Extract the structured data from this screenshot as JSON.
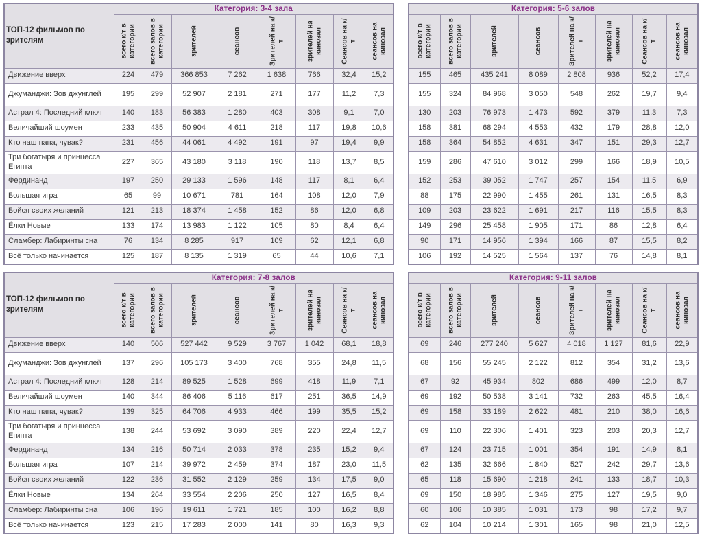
{
  "colors": {
    "category_title": "#8b3188",
    "header_bg": "#e2e0e5",
    "alt_row_bg": "#eceaef",
    "border": "#9b94ad",
    "outer_border": "#8d86a2"
  },
  "rows_header": "ТОП-12 фильмов по зрителям",
  "columns": [
    "всего к/т в категории",
    "всего залов в категории",
    "зрителей",
    "сеансов",
    "Зрителей на к/т",
    "зрителей на кинозал",
    "Сеансов на к/т",
    "сеансов на кинозал"
  ],
  "films": [
    "Движение вверх",
    "Джуманджи: Зов джунглей",
    "Астрал 4: Последний ключ",
    "Величайший шоумен",
    "Кто наш папа, чувак?",
    "Три богатыря и принцесса Египта",
    "Фердинанд",
    "Большая игра",
    "Бойся своих желаний",
    "Ёлки Новые",
    "Сламбер: Лабиринты сна",
    "Всё только начинается"
  ],
  "tables": [
    {
      "category": "Категория: 3-4 зала",
      "has_label_column": true,
      "rows": [
        [
          "224",
          "479",
          "366 853",
          "7 262",
          "1 638",
          "766",
          "32,4",
          "15,2"
        ],
        [
          "195",
          "299",
          "52 907",
          "2 181",
          "271",
          "177",
          "11,2",
          "7,3"
        ],
        [
          "140",
          "183",
          "56 383",
          "1 280",
          "403",
          "308",
          "9,1",
          "7,0"
        ],
        [
          "233",
          "435",
          "50 904",
          "4 611",
          "218",
          "117",
          "19,8",
          "10,6"
        ],
        [
          "231",
          "456",
          "44 061",
          "4 492",
          "191",
          "97",
          "19,4",
          "9,9"
        ],
        [
          "227",
          "365",
          "43 180",
          "3 118",
          "190",
          "118",
          "13,7",
          "8,5"
        ],
        [
          "197",
          "250",
          "29 133",
          "1 596",
          "148",
          "117",
          "8,1",
          "6,4"
        ],
        [
          "65",
          "99",
          "10 671",
          "781",
          "164",
          "108",
          "12,0",
          "7,9"
        ],
        [
          "121",
          "213",
          "18 374",
          "1 458",
          "152",
          "86",
          "12,0",
          "6,8"
        ],
        [
          "133",
          "174",
          "13 983",
          "1 122",
          "105",
          "80",
          "8,4",
          "6,4"
        ],
        [
          "76",
          "134",
          "8 285",
          "917",
          "109",
          "62",
          "12,1",
          "6,8"
        ],
        [
          "125",
          "187",
          "8 135",
          "1 319",
          "65",
          "44",
          "10,6",
          "7,1"
        ]
      ]
    },
    {
      "category": "Категория: 5-6 залов",
      "has_label_column": false,
      "rows": [
        [
          "155",
          "465",
          "435 241",
          "8 089",
          "2 808",
          "936",
          "52,2",
          "17,4"
        ],
        [
          "155",
          "324",
          "84 968",
          "3 050",
          "548",
          "262",
          "19,7",
          "9,4"
        ],
        [
          "130",
          "203",
          "76 973",
          "1 473",
          "592",
          "379",
          "11,3",
          "7,3"
        ],
        [
          "158",
          "381",
          "68 294",
          "4 553",
          "432",
          "179",
          "28,8",
          "12,0"
        ],
        [
          "158",
          "364",
          "54 852",
          "4 631",
          "347",
          "151",
          "29,3",
          "12,7"
        ],
        [
          "159",
          "286",
          "47 610",
          "3 012",
          "299",
          "166",
          "18,9",
          "10,5"
        ],
        [
          "152",
          "253",
          "39 052",
          "1 747",
          "257",
          "154",
          "11,5",
          "6,9"
        ],
        [
          "88",
          "175",
          "22 990",
          "1 455",
          "261",
          "131",
          "16,5",
          "8,3"
        ],
        [
          "109",
          "203",
          "23 622",
          "1 691",
          "217",
          "116",
          "15,5",
          "8,3"
        ],
        [
          "149",
          "296",
          "25 458",
          "1 905",
          "171",
          "86",
          "12,8",
          "6,4"
        ],
        [
          "90",
          "171",
          "14 956",
          "1 394",
          "166",
          "87",
          "15,5",
          "8,2"
        ],
        [
          "106",
          "192",
          "14 525",
          "1 564",
          "137",
          "76",
          "14,8",
          "8,1"
        ]
      ]
    },
    {
      "category": "Категория: 7-8 залов",
      "has_label_column": true,
      "rows": [
        [
          "140",
          "506",
          "527 442",
          "9 529",
          "3 767",
          "1 042",
          "68,1",
          "18,8"
        ],
        [
          "137",
          "296",
          "105 173",
          "3 400",
          "768",
          "355",
          "24,8",
          "11,5"
        ],
        [
          "128",
          "214",
          "89 525",
          "1 528",
          "699",
          "418",
          "11,9",
          "7,1"
        ],
        [
          "140",
          "344",
          "86 406",
          "5 116",
          "617",
          "251",
          "36,5",
          "14,9"
        ],
        [
          "139",
          "325",
          "64 706",
          "4 933",
          "466",
          "199",
          "35,5",
          "15,2"
        ],
        [
          "138",
          "244",
          "53 692",
          "3 090",
          "389",
          "220",
          "22,4",
          "12,7"
        ],
        [
          "134",
          "216",
          "50 714",
          "2 033",
          "378",
          "235",
          "15,2",
          "9,4"
        ],
        [
          "107",
          "214",
          "39 972",
          "2 459",
          "374",
          "187",
          "23,0",
          "11,5"
        ],
        [
          "122",
          "236",
          "31 552",
          "2 129",
          "259",
          "134",
          "17,5",
          "9,0"
        ],
        [
          "134",
          "264",
          "33 554",
          "2 206",
          "250",
          "127",
          "16,5",
          "8,4"
        ],
        [
          "106",
          "196",
          "19 611",
          "1 721",
          "185",
          "100",
          "16,2",
          "8,8"
        ],
        [
          "123",
          "215",
          "17 283",
          "2 000",
          "141",
          "80",
          "16,3",
          "9,3"
        ]
      ]
    },
    {
      "category": "Категория: 9-11 залов",
      "has_label_column": false,
      "rows": [
        [
          "69",
          "246",
          "277 240",
          "5 627",
          "4 018",
          "1 127",
          "81,6",
          "22,9"
        ],
        [
          "68",
          "156",
          "55 245",
          "2 122",
          "812",
          "354",
          "31,2",
          "13,6"
        ],
        [
          "67",
          "92",
          "45 934",
          "802",
          "686",
          "499",
          "12,0",
          "8,7"
        ],
        [
          "69",
          "192",
          "50 538",
          "3 141",
          "732",
          "263",
          "45,5",
          "16,4"
        ],
        [
          "69",
          "158",
          "33 189",
          "2 622",
          "481",
          "210",
          "38,0",
          "16,6"
        ],
        [
          "69",
          "110",
          "22 306",
          "1 401",
          "323",
          "203",
          "20,3",
          "12,7"
        ],
        [
          "67",
          "124",
          "23 715",
          "1 001",
          "354",
          "191",
          "14,9",
          "8,1"
        ],
        [
          "62",
          "135",
          "32 666",
          "1 840",
          "527",
          "242",
          "29,7",
          "13,6"
        ],
        [
          "65",
          "118",
          "15 690",
          "1 218",
          "241",
          "133",
          "18,7",
          "10,3"
        ],
        [
          "69",
          "150",
          "18 985",
          "1 346",
          "275",
          "127",
          "19,5",
          "9,0"
        ],
        [
          "60",
          "106",
          "10 385",
          "1 031",
          "173",
          "98",
          "17,2",
          "9,7"
        ],
        [
          "62",
          "104",
          "10 214",
          "1 301",
          "165",
          "98",
          "21,0",
          "12,5"
        ]
      ]
    }
  ]
}
